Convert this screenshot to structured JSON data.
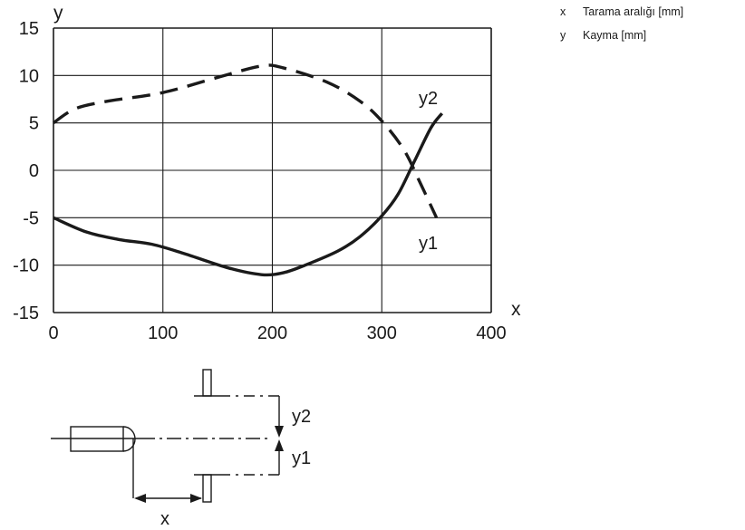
{
  "legend": [
    {
      "symbol": "x",
      "text": "Tarama aralığı [mm]"
    },
    {
      "symbol": "y",
      "text": "Kayma [mm]"
    }
  ],
  "chart_data": {
    "type": "line",
    "xlabel": "x",
    "ylabel": "y",
    "xlim": [
      0,
      400
    ],
    "ylim": [
      -15,
      15
    ],
    "x_ticks": [
      "0",
      "100",
      "200",
      "300",
      "400"
    ],
    "y_ticks": [
      "15",
      "10",
      "5",
      "0",
      "-5",
      "-10",
      "-15"
    ],
    "grid": true,
    "series": [
      {
        "name": "y2",
        "style": "dashed",
        "points": [
          [
            0,
            5
          ],
          [
            20,
            6.5
          ],
          [
            50,
            7.3
          ],
          [
            100,
            8.2
          ],
          [
            150,
            9.8
          ],
          [
            190,
            11
          ],
          [
            210,
            10.8
          ],
          [
            250,
            9.3
          ],
          [
            280,
            7.3
          ],
          [
            300,
            5.2
          ],
          [
            320,
            2.2
          ],
          [
            335,
            -1.3
          ],
          [
            350,
            -5
          ]
        ]
      },
      {
        "name": "y1",
        "style": "solid",
        "points": [
          [
            0,
            -5
          ],
          [
            30,
            -6.5
          ],
          [
            60,
            -7.3
          ],
          [
            90,
            -7.8
          ],
          [
            120,
            -8.8
          ],
          [
            160,
            -10.3
          ],
          [
            190,
            -11
          ],
          [
            210,
            -10.8
          ],
          [
            230,
            -10
          ],
          [
            260,
            -8.5
          ],
          [
            280,
            -7
          ],
          [
            300,
            -4.8
          ],
          [
            315,
            -2.5
          ],
          [
            330,
            1
          ],
          [
            345,
            4.5
          ],
          [
            355,
            6
          ]
        ]
      }
    ]
  },
  "diagram": {
    "labels": {
      "y2": "y2",
      "y1": "y1",
      "x": "x"
    }
  }
}
